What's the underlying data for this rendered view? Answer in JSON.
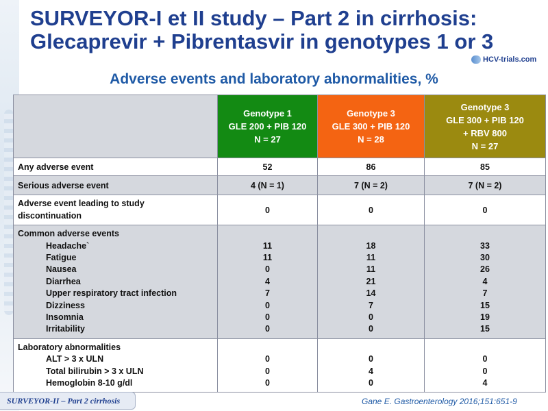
{
  "title": {
    "line1": "SURVEYOR-I et II study – Part 2 in cirrhosis:",
    "line2": "Glecaprevir + Pibrentasvir in genotypes 1 or 3"
  },
  "logo": {
    "text": "HCV-trials.com"
  },
  "subtitle": "Adverse events and laboratory abnormalities, %",
  "table": {
    "headers": [
      {
        "lines": [
          "Genotype 1",
          "GLE 200 + PIB 120",
          "N = 27"
        ],
        "color": "#138a13"
      },
      {
        "lines": [
          "Genotype 3",
          "GLE 300 + PIB 120",
          "N = 28"
        ],
        "color": "#f46412"
      },
      {
        "lines": [
          "Genotype 3",
          "GLE 300 + PIB 120",
          "+ RBV 800",
          "N = 27"
        ],
        "color": "#9b8a10"
      }
    ],
    "rows": [
      {
        "label": "Any adverse event",
        "values": [
          "52",
          "86",
          "85"
        ]
      },
      {
        "label": "Serious adverse event",
        "values": [
          "4 (N = 1)",
          "7 (N = 2)",
          "7 (N = 2)"
        ]
      },
      {
        "label_lines": [
          "Adverse event leading to study",
          "discontinuation"
        ],
        "values": [
          "0",
          "0",
          "0"
        ]
      },
      {
        "heading": "Common adverse events",
        "items": [
          "Headache`",
          "Fatigue",
          "Nausea",
          "Diarrhea",
          "Upper respiratory tract infection",
          "Dizziness",
          "Insomnia",
          "Irritability"
        ],
        "col1": [
          "11",
          "11",
          "0",
          "4",
          "7",
          "0",
          "0",
          "0"
        ],
        "col2": [
          "18",
          "11",
          "11",
          "21",
          "14",
          "7",
          "0",
          "0"
        ],
        "col3": [
          "33",
          "30",
          "26",
          "4",
          "7",
          "15",
          "19",
          "15"
        ]
      },
      {
        "heading": "Laboratory abnormalities",
        "items": [
          "ALT > 3 x ULN",
          "Total bilirubin > 3 x ULN",
          "Hemoglobin 8-10 g/dl"
        ],
        "col1": [
          "0",
          "0",
          "0"
        ],
        "col2": [
          "0",
          "4",
          "0"
        ],
        "col3": [
          "0",
          "0",
          "4"
        ]
      }
    ]
  },
  "footer_tab": "SURVEYOR-II – Part 2 cirrhosis",
  "citation": "Gane E. Gastroenterology 2016;151:651-9"
}
